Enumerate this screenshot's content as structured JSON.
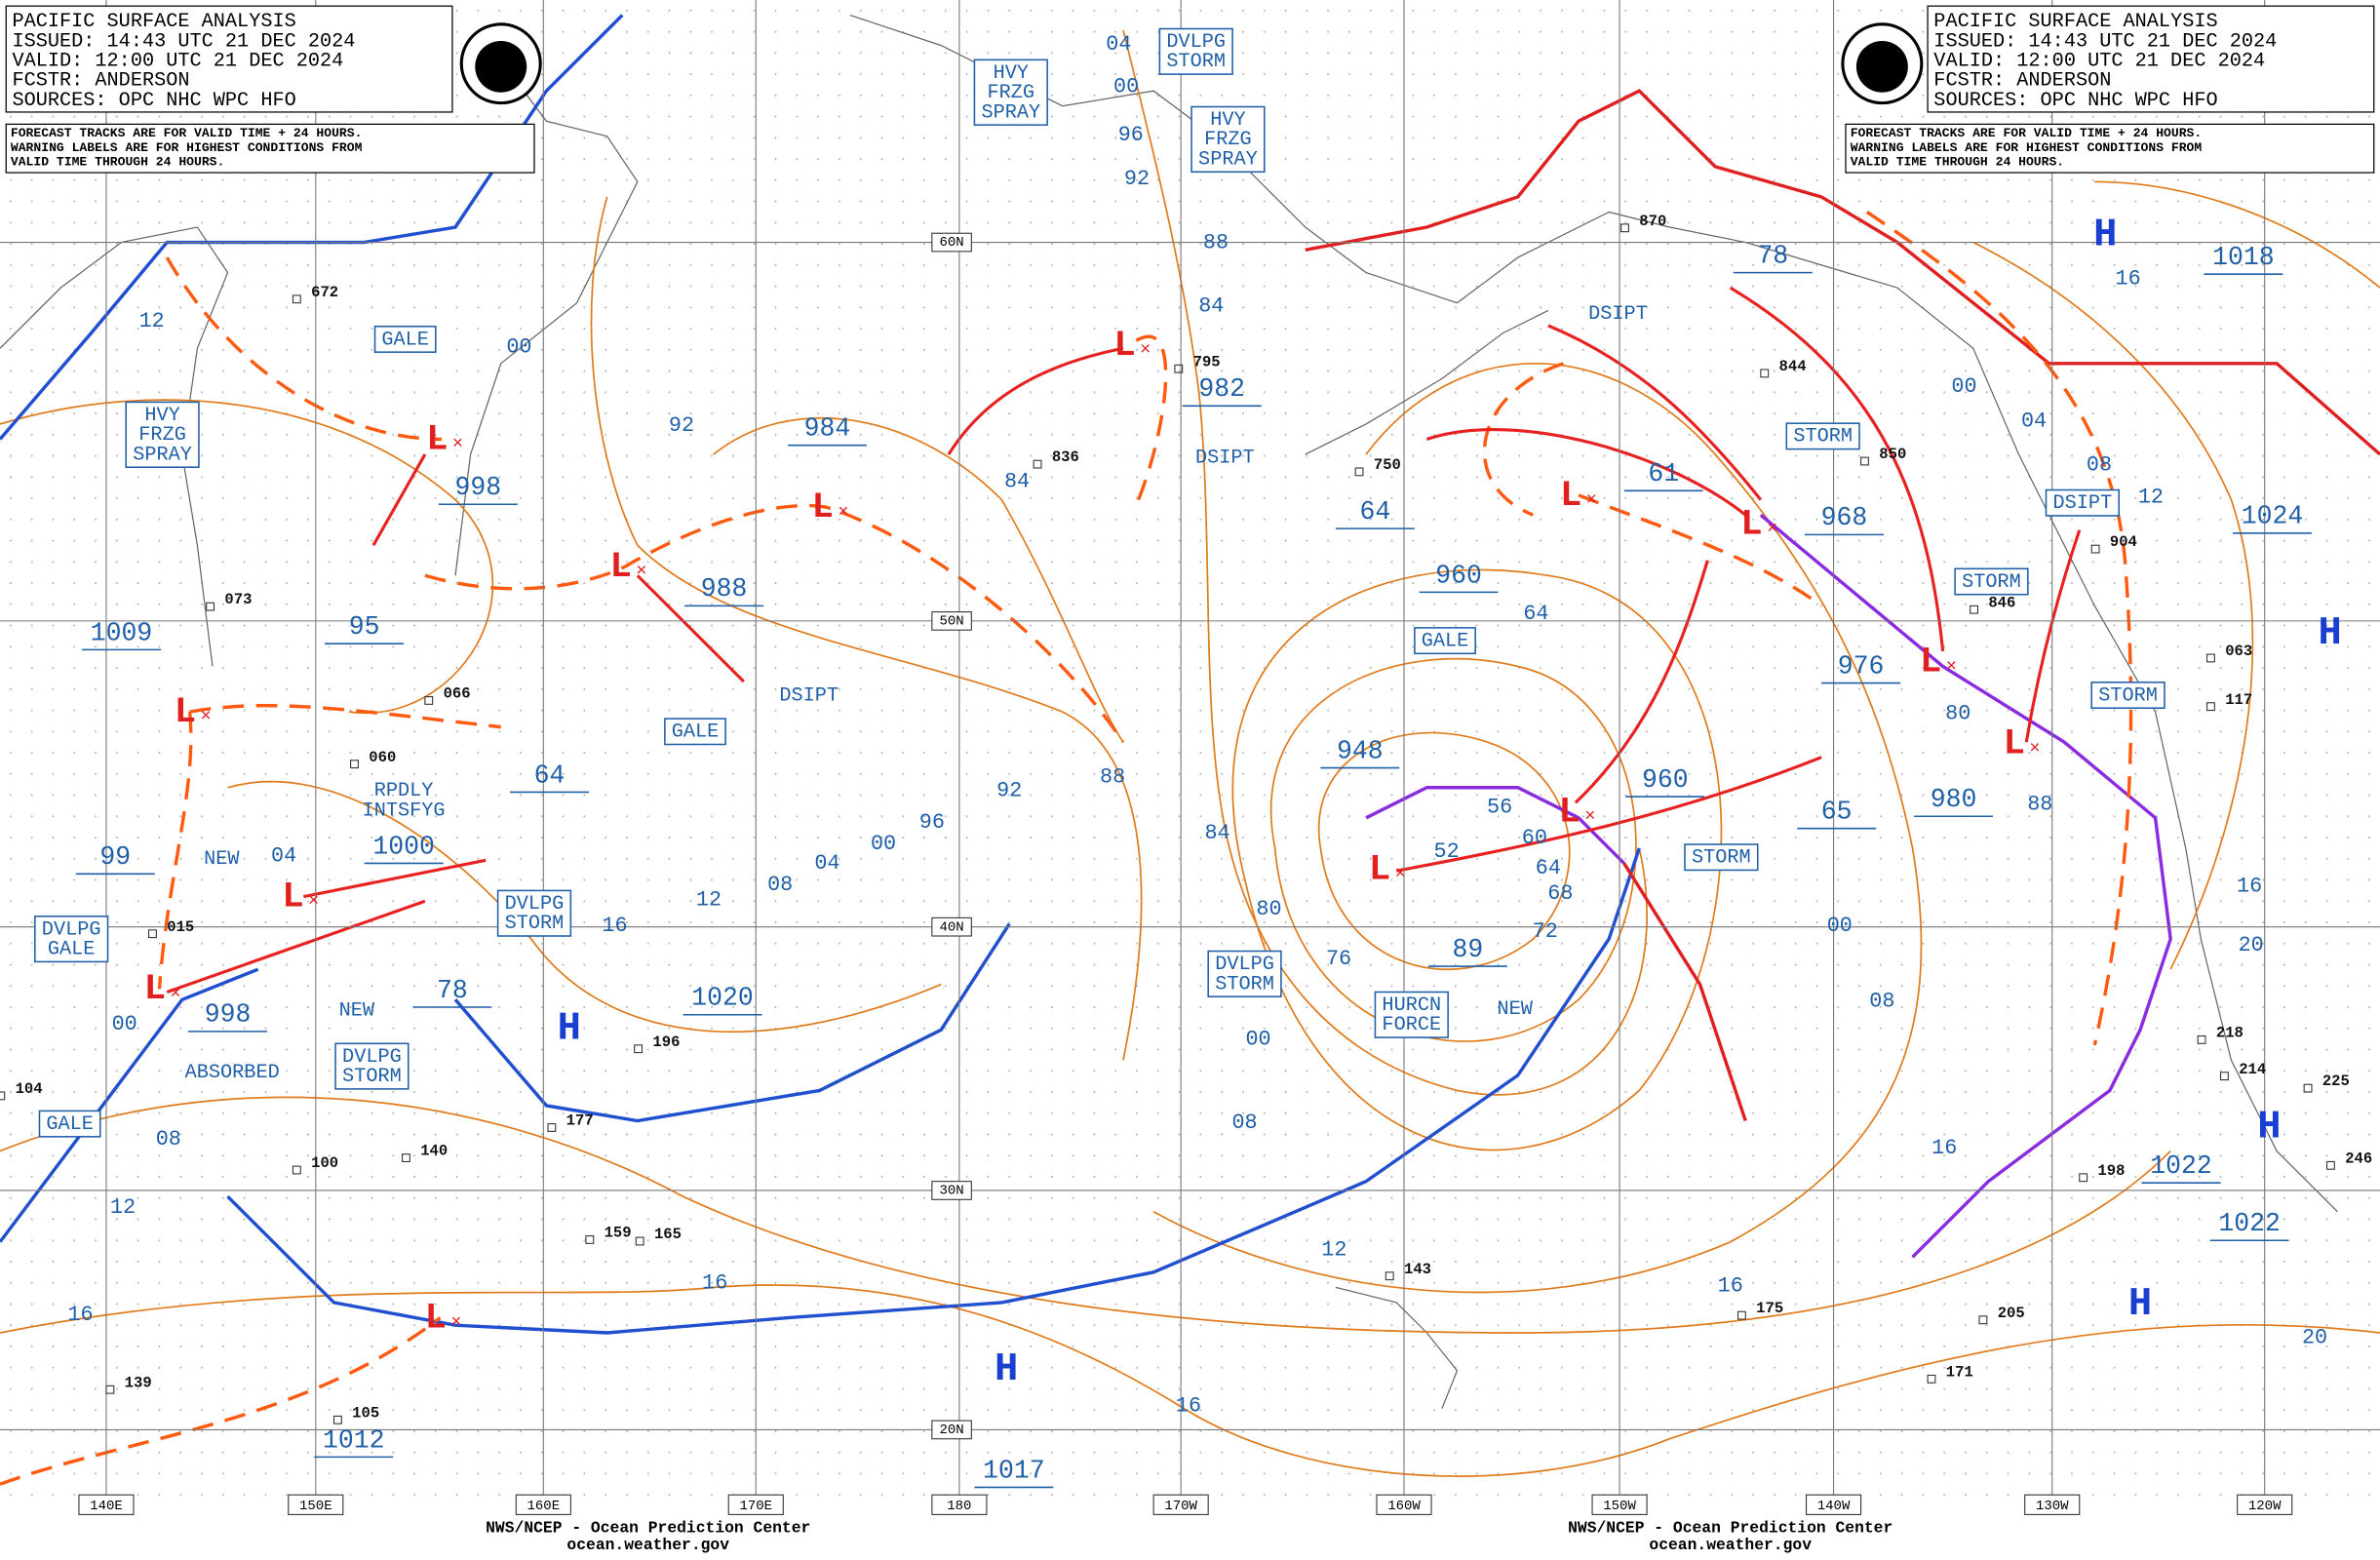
{
  "header": {
    "lines": [
      "PACIFIC SURFACE ANALYSIS",
      "ISSUED: 14:43 UTC 21 DEC 2024",
      "VALID:  12:00 UTC 21 DEC 2024",
      "FCSTR:  ANDERSON",
      "SOURCES: OPC NHC WPC HFO"
    ]
  },
  "note": [
    "FORECAST TRACKS ARE FOR VALID TIME + 24 HOURS.",
    "WARNING LABELS ARE FOR HIGHEST CONDITIONS FROM",
    "VALID TIME THROUGH 24 HOURS."
  ],
  "longitudes": [
    "140E",
    "150E",
    "160E",
    "170E",
    "180",
    "170W",
    "160W",
    "150W",
    "140W",
    "130W",
    "120W"
  ],
  "latitudes": [
    "60N",
    "50N",
    "40N",
    "30N",
    "20N"
  ],
  "pressure_labels": [
    "998",
    "1009",
    "95",
    "984",
    "988",
    "64",
    "1000",
    "99",
    "998",
    "78",
    "1020",
    "982",
    "64",
    "960",
    "948",
    "89",
    "61",
    "968",
    "976",
    "960",
    "65",
    "980",
    "78",
    "1018",
    "1024",
    "1022",
    "1022",
    "1012",
    "1017"
  ],
  "warnings": [
    [
      "GALE"
    ],
    [
      "HVY",
      "FRZG",
      "SPRAY"
    ],
    [
      "HVY",
      "FRZG",
      "SPRAY"
    ],
    [
      "DVLPG",
      "STORM"
    ],
    [
      "HVY",
      "FRZG",
      "SPRAY"
    ],
    [
      "GALE"
    ],
    [
      "DVLPG",
      "GALE"
    ],
    [
      "DVLPG",
      "STORM"
    ],
    [
      "DVLPG",
      "STORM"
    ],
    [
      "GALE"
    ],
    [
      "DVLPG",
      "STORM"
    ],
    [
      "HURCN",
      "FORCE"
    ],
    [
      "GALE"
    ],
    [
      "STORM"
    ],
    [
      "STORM"
    ],
    [
      "STORM"
    ],
    [
      "STORM"
    ],
    [
      "DSIPT"
    ]
  ],
  "remarks": [
    [
      "DSIPT"
    ],
    [
      "DSIPT"
    ],
    [
      "DSIPT"
    ],
    [
      "RPDLY",
      "INTSFYG"
    ],
    [
      "NEW"
    ],
    [
      "NEW"
    ],
    [
      "NEW"
    ],
    [
      "ABSORBED"
    ]
  ],
  "isobar_labels": [
    "12",
    "00",
    "92",
    "04",
    "00",
    "96",
    "92",
    "88",
    "84",
    "84",
    "04",
    "16",
    "12",
    "08",
    "04",
    "00",
    "96",
    "92",
    "88",
    "84",
    "80",
    "76",
    "52",
    "56",
    "60",
    "64",
    "68",
    "72",
    "00",
    "08",
    "12",
    "16",
    "00",
    "08",
    "12",
    "16",
    "16",
    "64",
    "00",
    "08",
    "16",
    "16",
    "20",
    "16",
    "20",
    "80",
    "88",
    "12",
    "08",
    "04",
    "00",
    "16"
  ],
  "highs": [
    "H",
    "H",
    "H",
    "H",
    "H",
    "H"
  ],
  "lows": [
    "L",
    "L",
    "L",
    "L",
    "L",
    "L",
    "L",
    "L",
    "L",
    "L",
    "L",
    "L",
    "L",
    "L"
  ],
  "stations": [
    "672",
    "073",
    "066",
    "060",
    "015",
    "104",
    "100",
    "140",
    "196",
    "177",
    "159",
    "165",
    "139",
    "105",
    "750",
    "836",
    "795",
    "844",
    "850",
    "846",
    "904",
    "063",
    "117",
    "218",
    "214",
    "225",
    "246",
    "198",
    "205",
    "175",
    "171",
    "143",
    "870"
  ],
  "footer": [
    "NWS/NCEP - Ocean Prediction Center",
    "ocean.weather.gov"
  ]
}
